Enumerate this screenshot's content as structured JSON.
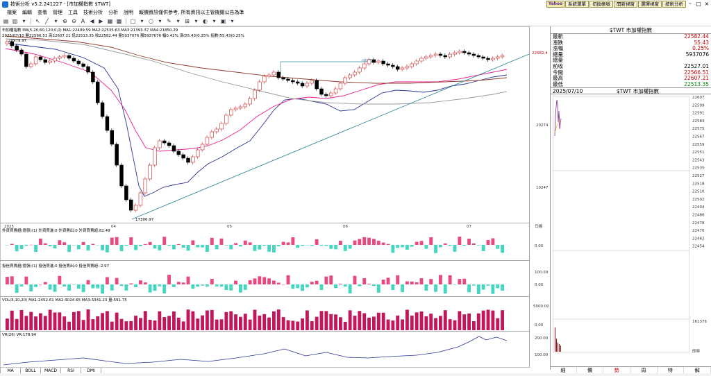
{
  "window": {
    "title": "技術分析 v5.2.241227 - [市加權指數 $TWT]"
  },
  "top_buttons": [
    "系統選單",
    "切換帳號",
    "開新視窗",
    "選擇視窗",
    "技術分析"
  ],
  "yahoo_label": "Yahoo",
  "menu": [
    "檔案",
    "編輯",
    "查看",
    "管理",
    "工具",
    "技術分析",
    "分析",
    "說明",
    "報價資訊僅供參考, 所有資訊以主管機關公告為準"
  ],
  "chart": {
    "header_line1": "市加權指數  MA(5,20,60,120,0,0)  MA1:22409.59  MA2:22535.63  MA3:21393.37  MA4:21850.29",
    "header_line2": "2025/07/10  開22566.51 高22607.21 低22513.35 收22582.44 量5937076 額5937076 幅0.42% 漲(55.43)0.25% 指數(55.43)0.25%",
    "price_axis_label": "22582.4",
    "axis_labels_main": [
      "20274",
      "10247"
    ],
    "high_marker": "22979.97",
    "low_marker": "17306.97",
    "dates": [
      "2025",
      "04",
      "05",
      "06",
      "07"
    ],
    "month_label": "日線",
    "trendline_label": "-90(T)",
    "panel1_title": "外資買賣超(億張)(1)  外資買進:0  外資賣出:0  外資買賣超:82.49",
    "panel1_axis": "0.00",
    "panel2_title": "投信買賣超(億張)(1)  投信買進:0  投信賣出:0  投信買賣超:-2.97",
    "panel2_axis": [
      "100.00",
      "0.00"
    ],
    "panel3_title": "VOL(5,10,20)  MA1:2452.61  MA2:3024.65  MA3:3341.23  量:591.75",
    "panel3_axis": [
      "5000.00",
      "0.00"
    ],
    "panel4_title": "VR(26)  VR:178.94",
    "panel4_axis": [
      "200.00",
      "100.00"
    ]
  },
  "quote": {
    "title": "$TWT 市加權指數",
    "rows": [
      {
        "label": "最新",
        "value": "22582.44",
        "color": "red"
      },
      {
        "label": "漲跌",
        "value": "55.43",
        "color": "red"
      },
      {
        "label": "漲幅",
        "value": "0.25%",
        "color": "red"
      },
      {
        "label": "總量",
        "value": "5937076",
        "color": "black"
      },
      {
        "label": "總量",
        "value": "",
        "color": "black"
      },
      {
        "label": "前收",
        "value": "22527.01",
        "color": "black"
      },
      {
        "label": "今開",
        "value": "22566.51",
        "color": "red"
      },
      {
        "label": "最高",
        "value": "22607.21",
        "color": "red"
      },
      {
        "label": "最低",
        "value": "22513.35",
        "color": "green"
      }
    ],
    "subheader_date": "2025/07/10",
    "subheader_name": "$TWT 市加權指數",
    "intraday_axis": [
      "22607",
      "22599",
      "22591",
      "22583",
      "22575",
      "22567",
      "22559",
      "22551",
      "22543",
      "22535",
      "22527",
      "22518",
      "22510",
      "22502",
      "22494",
      "22486",
      "22478",
      "22470",
      "22462",
      "22454"
    ],
    "intraday_vol_label": "161376",
    "intraday_time_label": "即時"
  },
  "right_tabs": [
    "細",
    "價",
    "勢",
    "周",
    "特",
    "解"
  ],
  "bottom_tabs": [
    "MA",
    "BOLL",
    "MACD",
    "RSI",
    "DMI"
  ]
}
